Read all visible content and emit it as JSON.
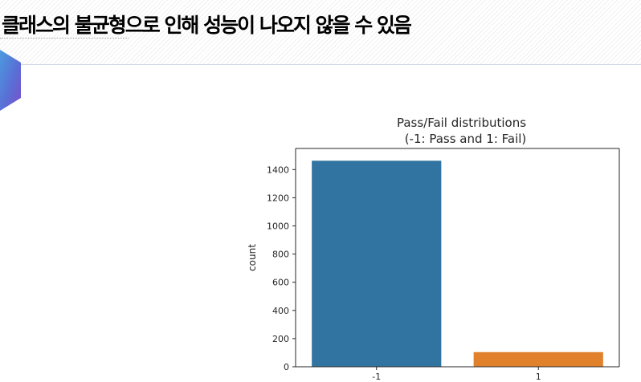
{
  "slide": {
    "title": "클래스의 불균형으로 인해 성능이 나오지 않을 수 있음"
  },
  "chart_data": {
    "type": "bar",
    "title_line1": "Pass/Fail distributions",
    "title_line2": "(-1: Pass and 1: Fail)",
    "xlabel": "",
    "ylabel": "count",
    "categories": [
      "-1",
      "1"
    ],
    "values": [
      1463,
      104
    ],
    "colors": [
      "#3274a1",
      "#e1812c"
    ],
    "ylim": [
      0,
      1550
    ],
    "yticks": [
      0,
      200,
      400,
      600,
      800,
      1000,
      1200,
      1400
    ],
    "grid": false,
    "legend": false
  }
}
